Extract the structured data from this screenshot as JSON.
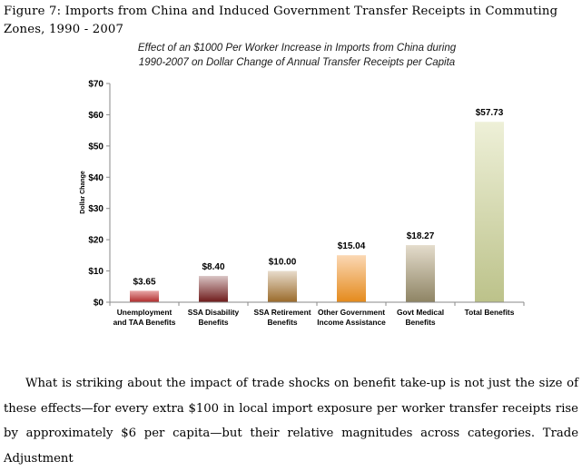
{
  "figure": {
    "caption": "Figure 7: Imports from China and Induced Government Transfer Receipts in Commuting Zones, 1990 - 2007"
  },
  "chart_data": {
    "type": "bar",
    "title_lines": [
      "Effect of an $1000 Per Worker Increase in Imports from China during",
      "1990-2007 on Dollar Change of Annual Transfer Receipts per Capita"
    ],
    "ylabel": "Dollar Change",
    "xlabel": "",
    "ylim": [
      0,
      70
    ],
    "yticks": [
      0,
      10,
      20,
      30,
      40,
      50,
      60,
      70
    ],
    "ytick_labels": [
      "$0",
      "$10",
      "$20",
      "$30",
      "$40",
      "$50",
      "$60",
      "$70"
    ],
    "grid": false,
    "categories": [
      [
        "Unemployment",
        "and TAA Benefits"
      ],
      [
        "SSA Disability",
        "Benefits"
      ],
      [
        "SSA Retirement",
        "Benefits"
      ],
      [
        "Other Government",
        "Income Assistance"
      ],
      [
        "Govt Medical",
        "Benefits"
      ],
      [
        "Total Benefits"
      ]
    ],
    "values": [
      3.65,
      8.4,
      10.0,
      15.04,
      18.27,
      57.73
    ],
    "value_labels": [
      "$3.65",
      "$8.40",
      "$10.00",
      "$15.04",
      "$18.27",
      "$57.73"
    ],
    "colors": [
      [
        "#e8a8a8",
        "#b02a2a"
      ],
      [
        "#d8c4c4",
        "#6e1a1a"
      ],
      [
        "#e8dccc",
        "#9a6a2a"
      ],
      [
        "#fbd8b4",
        "#e48a1c"
      ],
      [
        "#e4dccc",
        "#8e8464"
      ],
      [
        "#eef0d8",
        "#bcc28a"
      ]
    ]
  },
  "body": {
    "paragraph": "What is striking about the impact of trade shocks on benefit take-up is not just the size of these effects—for every extra $100 in local import exposure per worker transfer receipts rise by approximately $6 per capita—but their relative magnitudes across categories. Trade Adjustment"
  }
}
